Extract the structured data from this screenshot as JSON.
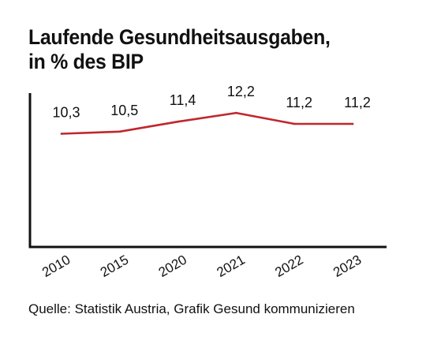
{
  "title_lines": [
    "Laufende Gesundheitsausgaben,",
    "in % des BIP"
  ],
  "source": "Quelle: Statistik Austria, Grafik Gesund kommunizieren",
  "chart_data": {
    "type": "line",
    "title": "Laufende Gesundheitsausgaben, in % des BIP",
    "categories": [
      "2010",
      "2015",
      "2020",
      "2021",
      "2022",
      "2023"
    ],
    "series": [
      {
        "values": [
          10.3,
          10.5,
          11.4,
          12.2,
          11.2,
          11.2
        ],
        "labels": [
          "10,3",
          "10,5",
          "11,4",
          "12,2",
          "11,2",
          "11,2"
        ],
        "color": "#c0272d"
      }
    ],
    "xlabel": "",
    "ylabel": "",
    "ylim": [
      0,
      14
    ],
    "grid": false,
    "legend": "none",
    "axis_color": "#111111"
  }
}
